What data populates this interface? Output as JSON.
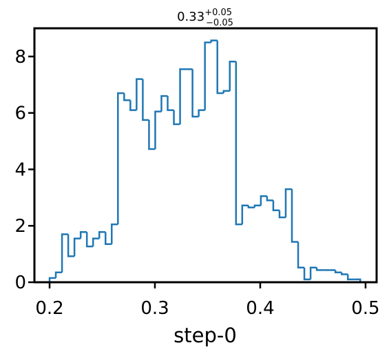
{
  "chart_data": {
    "type": "histogram",
    "title": "0.33",
    "title_sup": "+0.05",
    "title_sub": "−0.05",
    "xlabel": "step-0",
    "color": "#1f77b4",
    "bins": [
      0.2,
      0.2059,
      0.2118,
      0.2177,
      0.2236,
      0.2295,
      0.2354,
      0.2413,
      0.2472,
      0.2531,
      0.259,
      0.2649,
      0.2708,
      0.2767,
      0.2826,
      0.2885,
      0.2944,
      0.3003,
      0.3062,
      0.3121,
      0.318,
      0.3239,
      0.3298,
      0.3357,
      0.3416,
      0.3475,
      0.3534,
      0.3593,
      0.3652,
      0.3711,
      0.377,
      0.3829,
      0.3888,
      0.3947,
      0.4006,
      0.4065,
      0.4124,
      0.4183,
      0.4242,
      0.4301,
      0.436,
      0.4419,
      0.4478,
      0.4537,
      0.4596,
      0.4655,
      0.4714,
      0.4773,
      0.4832,
      0.4891,
      0.495
    ],
    "counts": [
      0.15,
      0.35,
      1.7,
      0.92,
      1.55,
      1.78,
      1.27,
      1.55,
      1.78,
      1.35,
      2.05,
      6.7,
      6.45,
      6.1,
      7.2,
      5.75,
      4.72,
      6.05,
      6.6,
      6.1,
      5.6,
      7.55,
      7.55,
      5.87,
      6.1,
      8.5,
      8.57,
      6.7,
      6.78,
      7.82,
      2.05,
      2.72,
      2.65,
      2.72,
      3.05,
      2.9,
      2.55,
      2.3,
      3.3,
      1.43,
      0.52,
      0.1,
      0.52,
      0.43,
      0.43,
      0.43,
      0.35,
      0.28,
      0.1,
      0.1
    ],
    "xlim": [
      0.1856,
      0.5105
    ],
    "xticks": [
      0.2,
      0.3,
      0.4,
      0.5
    ],
    "ylim": [
      0,
      9
    ],
    "yticks": [
      0,
      2,
      4,
      6,
      8
    ]
  }
}
